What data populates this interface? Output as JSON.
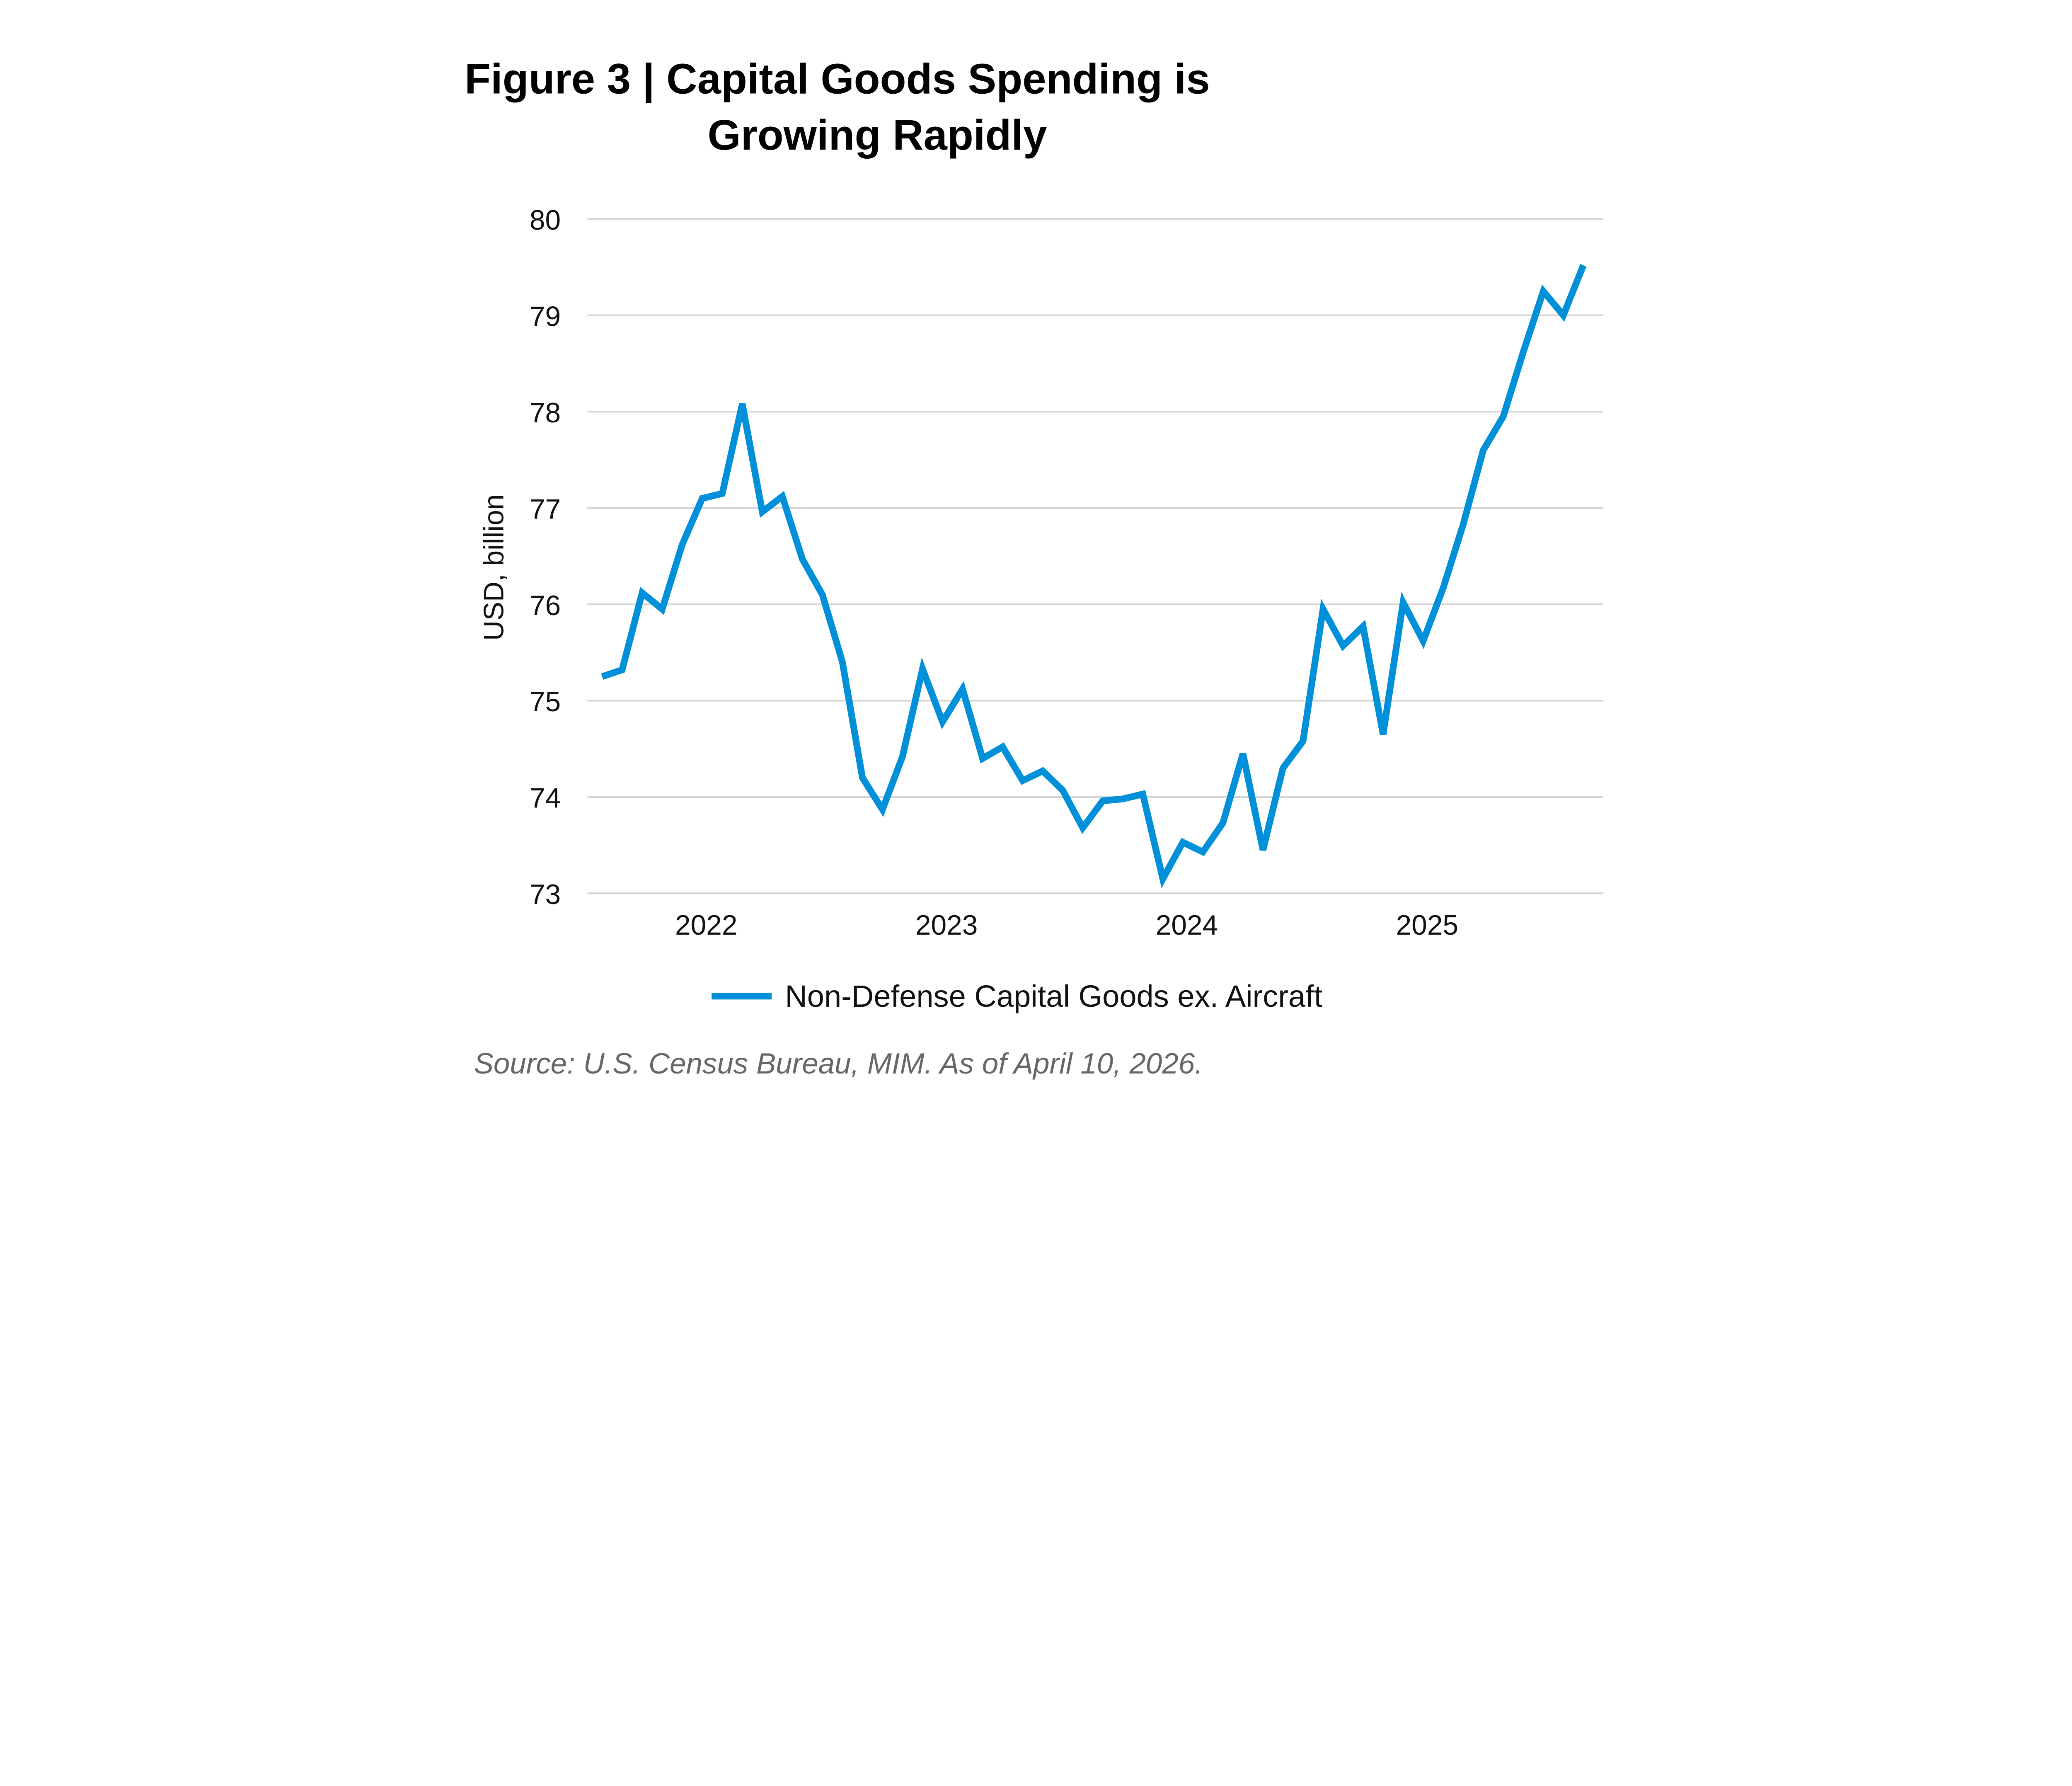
{
  "chart_data": {
    "type": "line",
    "title_line1": "Figure 3  |  Capital Goods Spending is",
    "title_line2": "Growing Rapidly",
    "xlabel": "",
    "ylabel": "USD, billion",
    "ylim": [
      73,
      80
    ],
    "yticks": [
      "73",
      "74",
      "75",
      "76",
      "77",
      "78",
      "79",
      "80"
    ],
    "xticks": [
      {
        "label": "2022",
        "date": "2022-01"
      },
      {
        "label": "2023",
        "date": "2023-01"
      },
      {
        "label": "2024",
        "date": "2024-01"
      },
      {
        "label": "2025",
        "date": "2025-01"
      }
    ],
    "grid": true,
    "legend_position": "bottom",
    "series": [
      {
        "name": "Non-Defense Capital Goods ex. Aircraft",
        "color": "#0090d9",
        "x": [
          "2021-08",
          "2021-09",
          "2021-10",
          "2021-11",
          "2021-12",
          "2022-01",
          "2022-02",
          "2022-03",
          "2022-04",
          "2022-05",
          "2022-06",
          "2022-07",
          "2022-08",
          "2022-09",
          "2022-10",
          "2022-11",
          "2022-12",
          "2023-01",
          "2023-02",
          "2023-03",
          "2023-04",
          "2023-05",
          "2023-06",
          "2023-07",
          "2023-08",
          "2023-09",
          "2023-10",
          "2023-11",
          "2023-12",
          "2024-01",
          "2024-02",
          "2024-03",
          "2024-04",
          "2024-05",
          "2024-06",
          "2024-07",
          "2024-08",
          "2024-09",
          "2024-10",
          "2024-11",
          "2024-12",
          "2025-01",
          "2025-02",
          "2025-03",
          "2025-04",
          "2025-05",
          "2025-06",
          "2025-07",
          "2025-08",
          "2025-09"
        ],
        "values": [
          75.25,
          75.32,
          76.12,
          75.95,
          76.62,
          77.1,
          77.15,
          78.08,
          76.96,
          77.12,
          76.47,
          76.1,
          75.4,
          74.2,
          73.87,
          74.42,
          75.33,
          74.78,
          75.12,
          74.4,
          74.52,
          74.17,
          74.27,
          74.07,
          73.68,
          73.96,
          73.98,
          74.03,
          73.15,
          73.53,
          73.43,
          73.73,
          74.45,
          73.45,
          74.3,
          74.58,
          75.95,
          75.57,
          75.77,
          74.65,
          76.02,
          75.62,
          76.17,
          76.83,
          77.6,
          77.95,
          78.62,
          79.25,
          79.0,
          79.52
        ]
      }
    ],
    "source": "Source: U.S. Census Bureau, MIM. As of April 10, 2026."
  }
}
